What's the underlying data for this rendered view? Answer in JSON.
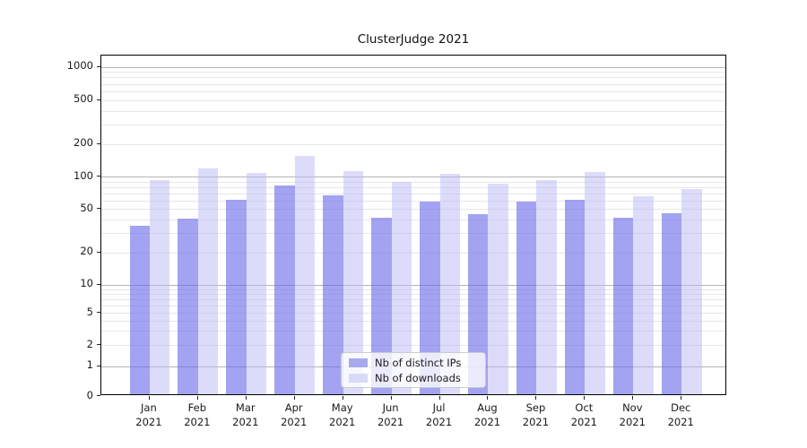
{
  "chart_data": {
    "type": "bar",
    "title": "ClusterJudge 2021",
    "categories": [
      "Jan",
      "Feb",
      "Mar",
      "Apr",
      "May",
      "Jun",
      "Jul",
      "Aug",
      "Sep",
      "Oct",
      "Nov",
      "Dec"
    ],
    "category_year": "2021",
    "series": [
      {
        "name": "Nb of distinct IPs",
        "color": "rgba(107,107,232,0.62)",
        "solid_hex": "#a8a8ec",
        "values": [
          34,
          39,
          59,
          80,
          65,
          40,
          56,
          43,
          56,
          59,
          40,
          44
        ]
      },
      {
        "name": "Nb of downloads",
        "color": "rgba(185,185,245,0.5)",
        "solid_hex": "#d9d9f8",
        "values": [
          90,
          114,
          103,
          150,
          108,
          86,
          101,
          83,
          89,
          105,
          63,
          73
        ]
      }
    ],
    "xlabel": "",
    "ylabel": "",
    "yscale": "symlog",
    "ylim": [
      0,
      1260
    ],
    "y_ticks": [
      1000,
      500,
      200,
      100,
      50,
      20,
      10,
      5,
      2,
      1,
      0
    ],
    "y_minor_ticks": [
      2,
      3,
      4,
      5,
      6,
      7,
      8,
      9,
      20,
      30,
      40,
      50,
      60,
      70,
      80,
      90,
      200,
      300,
      400,
      500,
      600,
      700,
      800,
      900
    ],
    "grid": true,
    "legend_position": "lower center",
    "colors": {
      "major_grid": "#b4b4b4",
      "minor_grid": "#e7e7e7",
      "axis": "#000000",
      "text": "#1a1a1a",
      "background": "#ffffff"
    }
  }
}
